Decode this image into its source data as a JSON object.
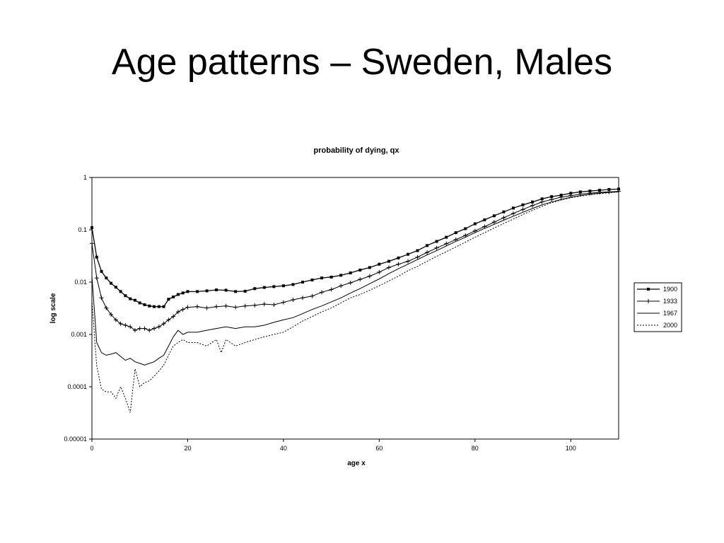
{
  "slide": {
    "title": "Age patterns – Sweden, Males"
  },
  "chart_data": {
    "type": "line",
    "title": "probability of dying, qx",
    "xlabel": "age x",
    "ylabel": "log scale",
    "xlim": [
      0,
      110
    ],
    "ylim": [
      1e-05,
      1
    ],
    "yscale": "log",
    "x_ticks": [
      0,
      20,
      40,
      60,
      80,
      100
    ],
    "y_ticks": [
      {
        "value": 1,
        "label": "1"
      },
      {
        "value": 0.1,
        "label": "0.1"
      },
      {
        "value": 0.01,
        "label": "0.01"
      },
      {
        "value": 0.001,
        "label": "0.001"
      },
      {
        "value": 0.0001,
        "label": "0.0001"
      },
      {
        "value": 1e-05,
        "label": "0.00001"
      }
    ],
    "grid": false,
    "legend": "right",
    "series": [
      {
        "name": "1900",
        "style": "line-square-markers",
        "points": [
          [
            0,
            0.11
          ],
          [
            1,
            0.03
          ],
          [
            2,
            0.016
          ],
          [
            3,
            0.012
          ],
          [
            4,
            0.0095
          ],
          [
            5,
            0.008
          ],
          [
            6,
            0.0066
          ],
          [
            7,
            0.0055
          ],
          [
            8,
            0.0048
          ],
          [
            9,
            0.0045
          ],
          [
            10,
            0.004
          ],
          [
            11,
            0.0037
          ],
          [
            12,
            0.0035
          ],
          [
            13,
            0.0034
          ],
          [
            14,
            0.0034
          ],
          [
            15,
            0.0034
          ],
          [
            16,
            0.0047
          ],
          [
            17,
            0.0052
          ],
          [
            18,
            0.0058
          ],
          [
            19,
            0.0062
          ],
          [
            20,
            0.0066
          ],
          [
            22,
            0.0066
          ],
          [
            24,
            0.0068
          ],
          [
            26,
            0.0071
          ],
          [
            28,
            0.007
          ],
          [
            30,
            0.0066
          ],
          [
            32,
            0.0067
          ],
          [
            34,
            0.0075
          ],
          [
            36,
            0.0079
          ],
          [
            38,
            0.0082
          ],
          [
            40,
            0.0085
          ],
          [
            42,
            0.009
          ],
          [
            44,
            0.01
          ],
          [
            46,
            0.011
          ],
          [
            48,
            0.012
          ],
          [
            50,
            0.0125
          ],
          [
            52,
            0.0135
          ],
          [
            54,
            0.015
          ],
          [
            56,
            0.017
          ],
          [
            58,
            0.019
          ],
          [
            60,
            0.022
          ],
          [
            62,
            0.025
          ],
          [
            64,
            0.029
          ],
          [
            66,
            0.034
          ],
          [
            68,
            0.04
          ],
          [
            70,
            0.05
          ],
          [
            72,
            0.06
          ],
          [
            74,
            0.072
          ],
          [
            76,
            0.088
          ],
          [
            78,
            0.105
          ],
          [
            80,
            0.13
          ],
          [
            82,
            0.155
          ],
          [
            84,
            0.185
          ],
          [
            86,
            0.22
          ],
          [
            88,
            0.26
          ],
          [
            90,
            0.3
          ],
          [
            92,
            0.34
          ],
          [
            94,
            0.39
          ],
          [
            96,
            0.43
          ],
          [
            98,
            0.46
          ],
          [
            100,
            0.5
          ],
          [
            102,
            0.53
          ],
          [
            104,
            0.55
          ],
          [
            106,
            0.57
          ],
          [
            108,
            0.59
          ],
          [
            110,
            0.6
          ]
        ]
      },
      {
        "name": "1933",
        "style": "line-cross-markers",
        "points": [
          [
            0,
            0.055
          ],
          [
            1,
            0.012
          ],
          [
            2,
            0.005
          ],
          [
            3,
            0.0032
          ],
          [
            4,
            0.0024
          ],
          [
            5,
            0.0019
          ],
          [
            6,
            0.0016
          ],
          [
            7,
            0.0015
          ],
          [
            8,
            0.0014
          ],
          [
            9,
            0.0012
          ],
          [
            10,
            0.0013
          ],
          [
            11,
            0.0013
          ],
          [
            12,
            0.0012
          ],
          [
            13,
            0.0013
          ],
          [
            14,
            0.0014
          ],
          [
            15,
            0.0016
          ],
          [
            16,
            0.0019
          ],
          [
            17,
            0.0022
          ],
          [
            18,
            0.0027
          ],
          [
            19,
            0.003
          ],
          [
            20,
            0.0033
          ],
          [
            22,
            0.0034
          ],
          [
            24,
            0.0032
          ],
          [
            26,
            0.0034
          ],
          [
            28,
            0.0035
          ],
          [
            30,
            0.0033
          ],
          [
            32,
            0.0035
          ],
          [
            34,
            0.0036
          ],
          [
            36,
            0.0038
          ],
          [
            38,
            0.0037
          ],
          [
            40,
            0.0041
          ],
          [
            42,
            0.0046
          ],
          [
            44,
            0.005
          ],
          [
            46,
            0.0054
          ],
          [
            48,
            0.0064
          ],
          [
            50,
            0.0072
          ],
          [
            52,
            0.0085
          ],
          [
            54,
            0.0097
          ],
          [
            56,
            0.0113
          ],
          [
            58,
            0.013
          ],
          [
            60,
            0.0155
          ],
          [
            62,
            0.019
          ],
          [
            64,
            0.022
          ],
          [
            66,
            0.025
          ],
          [
            68,
            0.03
          ],
          [
            70,
            0.037
          ],
          [
            72,
            0.045
          ],
          [
            74,
            0.054
          ],
          [
            76,
            0.065
          ],
          [
            78,
            0.078
          ],
          [
            80,
            0.095
          ],
          [
            82,
            0.115
          ],
          [
            84,
            0.14
          ],
          [
            86,
            0.17
          ],
          [
            88,
            0.205
          ],
          [
            90,
            0.245
          ],
          [
            92,
            0.29
          ],
          [
            94,
            0.34
          ],
          [
            96,
            0.38
          ],
          [
            98,
            0.42
          ],
          [
            100,
            0.45
          ],
          [
            102,
            0.48
          ],
          [
            104,
            0.5
          ],
          [
            106,
            0.52
          ],
          [
            108,
            0.53
          ],
          [
            110,
            0.54
          ]
        ]
      },
      {
        "name": "1967",
        "style": "line-solid",
        "points": [
          [
            0,
            0.013
          ],
          [
            1,
            0.0007
          ],
          [
            2,
            0.00045
          ],
          [
            3,
            0.0004
          ],
          [
            4,
            0.00042
          ],
          [
            5,
            0.00045
          ],
          [
            6,
            0.00038
          ],
          [
            7,
            0.00032
          ],
          [
            8,
            0.00035
          ],
          [
            9,
            0.0003
          ],
          [
            10,
            0.00028
          ],
          [
            11,
            0.00026
          ],
          [
            12,
            0.00028
          ],
          [
            13,
            0.0003
          ],
          [
            14,
            0.00035
          ],
          [
            15,
            0.0004
          ],
          [
            16,
            0.0006
          ],
          [
            17,
            0.0009
          ],
          [
            18,
            0.0012
          ],
          [
            19,
            0.001
          ],
          [
            20,
            0.0011
          ],
          [
            22,
            0.0011
          ],
          [
            24,
            0.0012
          ],
          [
            26,
            0.0013
          ],
          [
            28,
            0.0014
          ],
          [
            30,
            0.0013
          ],
          [
            32,
            0.0014
          ],
          [
            34,
            0.0014
          ],
          [
            36,
            0.0015
          ],
          [
            38,
            0.0017
          ],
          [
            40,
            0.0019
          ],
          [
            42,
            0.0021
          ],
          [
            44,
            0.0025
          ],
          [
            46,
            0.003
          ],
          [
            48,
            0.0035
          ],
          [
            50,
            0.0042
          ],
          [
            52,
            0.005
          ],
          [
            54,
            0.0062
          ],
          [
            56,
            0.0075
          ],
          [
            58,
            0.0093
          ],
          [
            60,
            0.0115
          ],
          [
            62,
            0.0145
          ],
          [
            64,
            0.018
          ],
          [
            66,
            0.022
          ],
          [
            68,
            0.027
          ],
          [
            70,
            0.033
          ],
          [
            72,
            0.04
          ],
          [
            74,
            0.049
          ],
          [
            76,
            0.06
          ],
          [
            78,
            0.072
          ],
          [
            80,
            0.088
          ],
          [
            82,
            0.106
          ],
          [
            84,
            0.127
          ],
          [
            86,
            0.152
          ],
          [
            88,
            0.182
          ],
          [
            90,
            0.216
          ],
          [
            92,
            0.255
          ],
          [
            94,
            0.3
          ],
          [
            96,
            0.34
          ],
          [
            98,
            0.38
          ],
          [
            100,
            0.42
          ],
          [
            102,
            0.45
          ],
          [
            104,
            0.48
          ],
          [
            106,
            0.5
          ],
          [
            108,
            0.52
          ],
          [
            110,
            0.53
          ]
        ]
      },
      {
        "name": "2000",
        "style": "line-dotted",
        "points": [
          [
            0,
            0.0045
          ],
          [
            1,
            0.00025
          ],
          [
            2,
            9e-05
          ],
          [
            3,
            8e-05
          ],
          [
            4,
            8e-05
          ],
          [
            5,
            6e-05
          ],
          [
            6,
            0.0001
          ],
          [
            7,
            6e-05
          ],
          [
            8,
            3.2e-05
          ],
          [
            9,
            0.00022
          ],
          [
            10,
            0.0001
          ],
          [
            11,
            0.00012
          ],
          [
            12,
            0.00013
          ],
          [
            13,
            0.00016
          ],
          [
            14,
            0.0002
          ],
          [
            15,
            0.00026
          ],
          [
            16,
            0.0004
          ],
          [
            17,
            0.0006
          ],
          [
            18,
            0.0007
          ],
          [
            19,
            0.0008
          ],
          [
            20,
            0.0007
          ],
          [
            22,
            0.0007
          ],
          [
            24,
            0.0006
          ],
          [
            26,
            0.0008
          ],
          [
            27,
            0.00045
          ],
          [
            28,
            0.0008
          ],
          [
            30,
            0.0006
          ],
          [
            32,
            0.0007
          ],
          [
            34,
            0.0008
          ],
          [
            36,
            0.0009
          ],
          [
            38,
            0.001
          ],
          [
            40,
            0.0011
          ],
          [
            42,
            0.0014
          ],
          [
            44,
            0.0018
          ],
          [
            46,
            0.0022
          ],
          [
            48,
            0.0027
          ],
          [
            50,
            0.0032
          ],
          [
            52,
            0.004
          ],
          [
            54,
            0.005
          ],
          [
            56,
            0.0058
          ],
          [
            58,
            0.007
          ],
          [
            60,
            0.0085
          ],
          [
            62,
            0.0105
          ],
          [
            64,
            0.013
          ],
          [
            66,
            0.0165
          ],
          [
            68,
            0.02
          ],
          [
            70,
            0.025
          ],
          [
            72,
            0.031
          ],
          [
            74,
            0.038
          ],
          [
            76,
            0.047
          ],
          [
            78,
            0.058
          ],
          [
            80,
            0.072
          ],
          [
            82,
            0.088
          ],
          [
            84,
            0.108
          ],
          [
            86,
            0.132
          ],
          [
            88,
            0.16
          ],
          [
            90,
            0.195
          ],
          [
            92,
            0.235
          ],
          [
            94,
            0.28
          ],
          [
            96,
            0.33
          ],
          [
            98,
            0.37
          ],
          [
            100,
            0.41
          ],
          [
            102,
            0.44
          ],
          [
            104,
            0.47
          ],
          [
            106,
            0.49
          ],
          [
            108,
            0.51
          ],
          [
            110,
            0.53
          ]
        ]
      }
    ]
  }
}
